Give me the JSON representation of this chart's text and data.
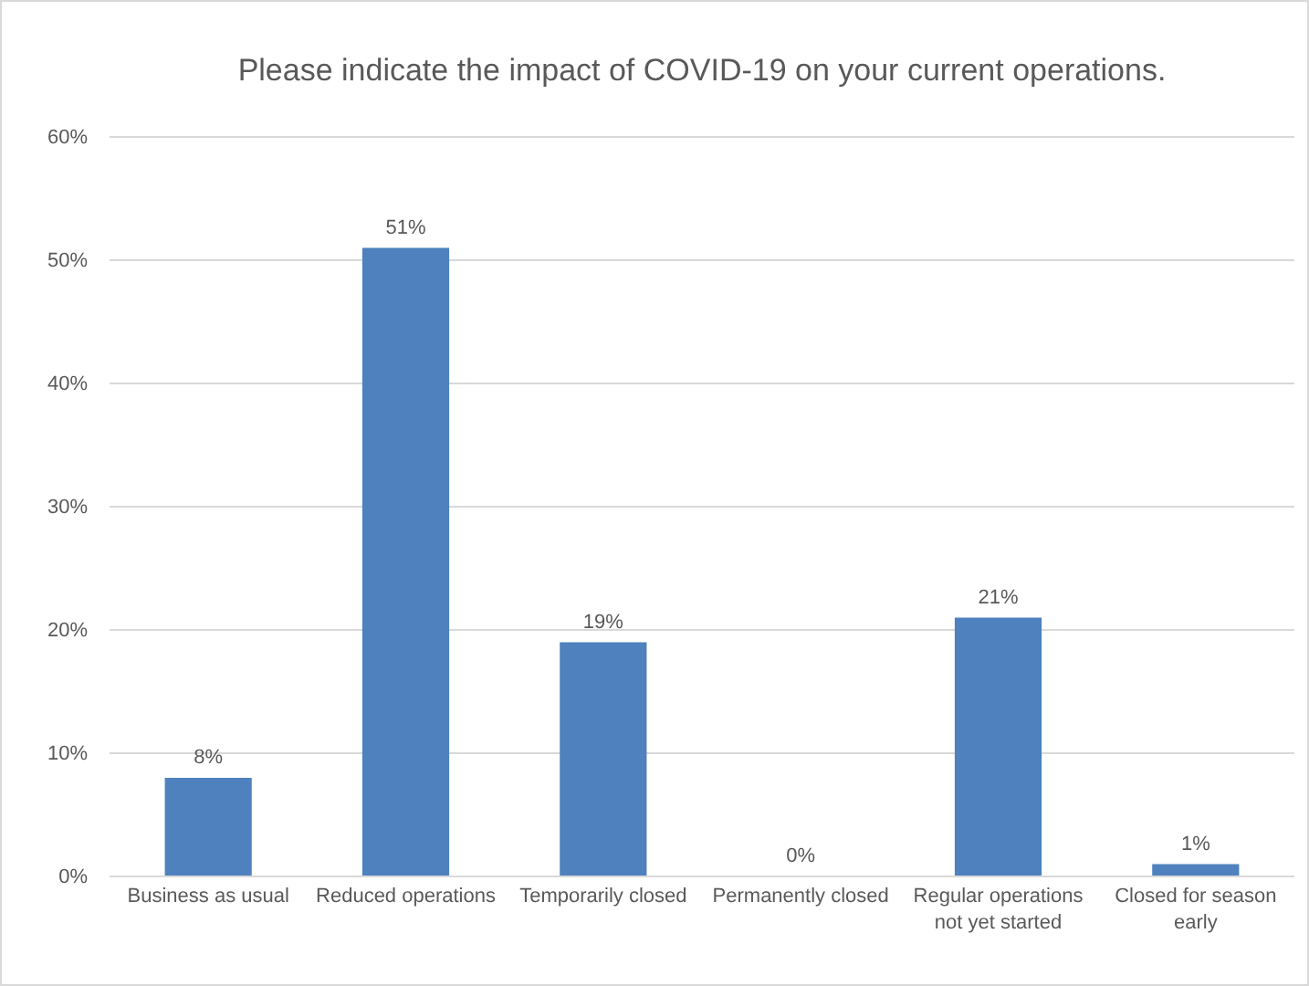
{
  "chart_data": {
    "type": "bar",
    "title": "Please indicate the impact of COVID-19 on your current operations.",
    "categories": [
      "Business as usual",
      "Reduced operations",
      "Temporarily closed",
      "Permanently closed",
      "Regular operations not yet started",
      "Closed for season early"
    ],
    "values": [
      8,
      51,
      19,
      0,
      21,
      1
    ],
    "value_labels": [
      "8%",
      "51%",
      "19%",
      "0%",
      "21%",
      "1%"
    ],
    "color": "#4e81bd",
    "ylim": [
      0,
      60
    ],
    "yticks": [
      {
        "value": 0,
        "label": "0%"
      },
      {
        "value": 10,
        "label": "10%"
      },
      {
        "value": 20,
        "label": "20%"
      },
      {
        "value": 30,
        "label": "30%"
      },
      {
        "value": 40,
        "label": "40%"
      },
      {
        "value": 50,
        "label": "50%"
      },
      {
        "value": 60,
        "label": "60%"
      }
    ],
    "grid": "y"
  }
}
